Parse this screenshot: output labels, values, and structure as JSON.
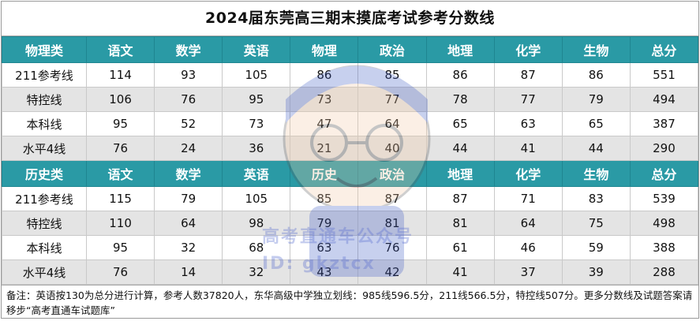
{
  "title": "2024届东莞高三期末摸底考试参考分数线",
  "sections": [
    {
      "header": [
        "物理类",
        "语文",
        "数学",
        "英语",
        "物理",
        "政治",
        "地理",
        "化学",
        "生物",
        "总分"
      ],
      "rows": [
        [
          "211参考线",
          "114",
          "93",
          "105",
          "86",
          "85",
          "86",
          "87",
          "86",
          "551"
        ],
        [
          "特控线",
          "106",
          "76",
          "95",
          "73",
          "77",
          "78",
          "77",
          "79",
          "494"
        ],
        [
          "本科线",
          "95",
          "52",
          "73",
          "47",
          "64",
          "65",
          "63",
          "65",
          "387"
        ],
        [
          "水平4线",
          "76",
          "24",
          "36",
          "21",
          "40",
          "44",
          "41",
          "44",
          "290"
        ]
      ]
    },
    {
      "header": [
        "历史类",
        "语文",
        "数学",
        "英语",
        "历史",
        "政治",
        "地理",
        "化学",
        "生物",
        "总分"
      ],
      "rows": [
        [
          "211参考线",
          "115",
          "79",
          "105",
          "85",
          "87",
          "87",
          "71",
          "83",
          "539"
        ],
        [
          "特控线",
          "110",
          "64",
          "98",
          "79",
          "81",
          "81",
          "64",
          "75",
          "498"
        ],
        [
          "本科线",
          "95",
          "32",
          "68",
          "63",
          "76",
          "61",
          "46",
          "59",
          "388"
        ],
        [
          "水平4线",
          "76",
          "14",
          "32",
          "43",
          "42",
          "41",
          "37",
          "39",
          "288"
        ]
      ]
    }
  ],
  "note": "备注：英语按130为总分进行计算，参考人数37820人，东华高级中学独立划线：985线596.5分，211线566.5分，特控线507分。更多分数线及试题答案请移步“高考直通车试题库”",
  "watermark": {
    "line1": "高考直通车公众号",
    "line2": "ID: gkztcx"
  }
}
